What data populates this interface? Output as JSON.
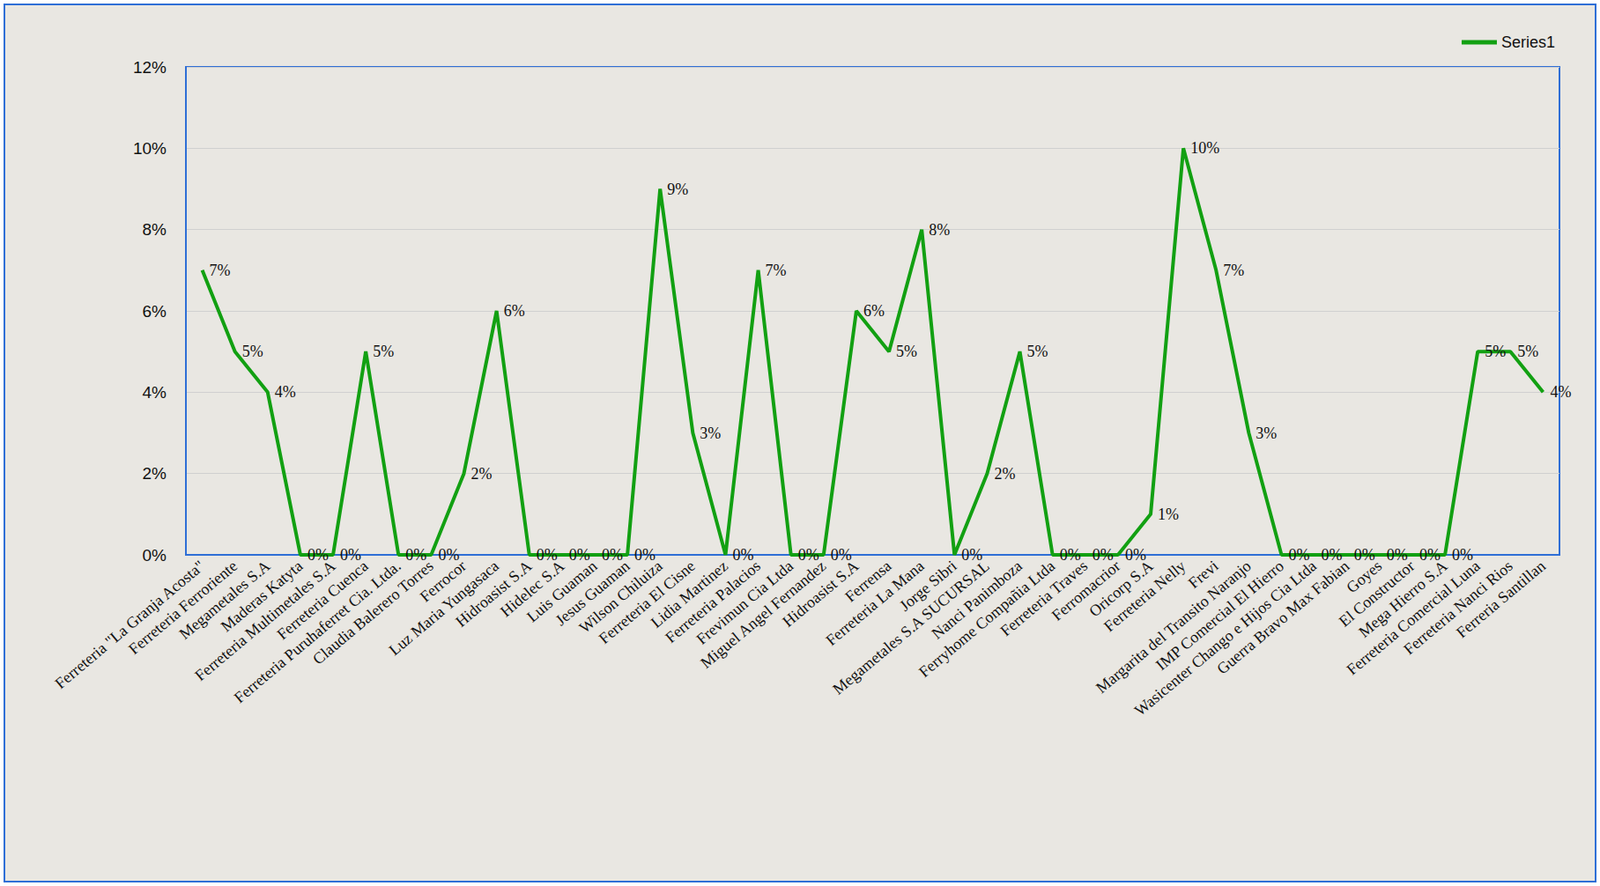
{
  "chart_data": {
    "type": "line",
    "categories": [
      "Ferreteria \"La Granja Acosta\"",
      "Ferreteria Ferroriente",
      "Megametales S.A",
      "Maderas Katyta",
      "Ferreteria Multimetales S.A",
      "Ferreteria Cuenca",
      "Ferreteria Puruhaferret Cia. Ltda.",
      "Claudia Balerero Torres",
      "Ferrocor",
      "Luz Maria Yungasaca",
      "Hidroasist S.A",
      "Hidelec S.A",
      "Luis Guaman",
      "Jesus Guaman",
      "Wilson Chiluiza",
      "Ferreteria El Cisne",
      "Lidia Martinez",
      "Ferreteria Palacios",
      "Frevimun Cia Ltda",
      "Miguel Angel Fernandez",
      "Hidroasist S.A",
      "Ferrensa",
      "Ferreteria La Mana",
      "Jorge Sibri",
      "Megametales S.A SUCURSAL",
      "Nanci Panimboza",
      "Ferryhome Compañia Ltda",
      "Ferreteria Traves",
      "Ferromacrior",
      "Oricorp S.A",
      "Ferreteria Nelly",
      "Frevi",
      "Margarita del Transito Naranjo",
      "IMP Comercial El Hierro",
      "Wasicenter Chango e Hijos Cia Ltda",
      "Guerra Bravo Max Fabian",
      "Goyes",
      "El Constructor",
      "Mega Hierro S.A",
      "Ferreteria Comercial Luna",
      "Ferreteria Nanci Rios",
      "Ferreria Santillan"
    ],
    "series": [
      {
        "name": "Series1",
        "color": "#12a012",
        "values": [
          7,
          5,
          4,
          0,
          0,
          5,
          0,
          0,
          2,
          6,
          0,
          0,
          0,
          0,
          9,
          3,
          0,
          7,
          0,
          0,
          6,
          5,
          8,
          0,
          2,
          5,
          0,
          0,
          0,
          1,
          10,
          7,
          3,
          0,
          0,
          0,
          0,
          0,
          0,
          5,
          5,
          4
        ],
        "value_labels": [
          "7%",
          "5%",
          "4%",
          "0%",
          "0%",
          "5%",
          "0%",
          "0%",
          "2%",
          "6%",
          "0%",
          "0%",
          "0%",
          "0%",
          "9%",
          "3%",
          "0%",
          "7%",
          "0%",
          "0%",
          "6%",
          "5%",
          "8%",
          "0%",
          "2%",
          "5%",
          "0%",
          "0%",
          "0%",
          "1%",
          "10%",
          "7%",
          "3%",
          "0%",
          "0%",
          "0%",
          "0%",
          "0%",
          "0%",
          "5%",
          "5%",
          "4%"
        ]
      }
    ],
    "ylim": [
      0,
      12
    ],
    "yticks": [
      {
        "value": 0,
        "label": "0%"
      },
      {
        "value": 2,
        "label": "2%"
      },
      {
        "value": 4,
        "label": "4%"
      },
      {
        "value": 6,
        "label": "6%"
      },
      {
        "value": 8,
        "label": "8%"
      },
      {
        "value": 10,
        "label": "10%"
      },
      {
        "value": 12,
        "label": "12%"
      }
    ],
    "grid": true,
    "data_labels": true,
    "legend": "top-right"
  }
}
